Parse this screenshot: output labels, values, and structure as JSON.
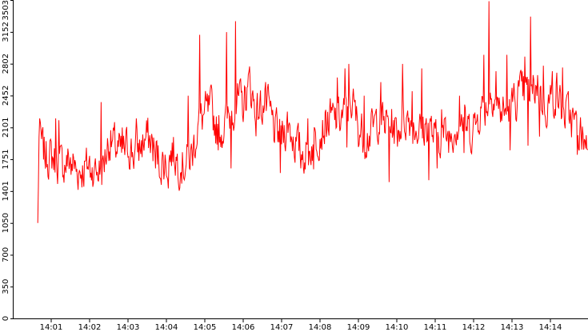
{
  "chart_data": {
    "type": "line",
    "title": "",
    "xlabel": "",
    "ylabel": "",
    "ylim": [
      0,
      3503
    ],
    "y_ticks": [
      0,
      350,
      700,
      1050,
      1401,
      1751,
      2101,
      2452,
      2802,
      3152,
      3503
    ],
    "x_ticks": [
      "14:01",
      "14:02",
      "14:03",
      "14:04",
      "14:05",
      "14:06",
      "14:07",
      "14:08",
      "14:09",
      "14:10",
      "14:11",
      "14:12",
      "14:13",
      "14:14"
    ],
    "x_range": [
      "14:00:39",
      "14:14:59"
    ],
    "grid": false,
    "legend": "none",
    "series": [
      {
        "color": "#ff0000",
        "sample_interval_s": 1,
        "anchors": [
          [
            "14:00:39",
            1050
          ],
          [
            "14:00:41",
            2000
          ],
          [
            "14:00:50",
            1800
          ],
          [
            "14:01:00",
            1780
          ],
          [
            "14:01:10",
            1720
          ],
          [
            "14:01:20",
            1680
          ],
          [
            "14:01:30",
            1760
          ],
          [
            "14:01:40",
            1620
          ],
          [
            "14:01:50",
            1640
          ],
          [
            "14:02:00",
            1700
          ],
          [
            "14:02:10",
            1620
          ],
          [
            "14:02:20",
            1650
          ],
          [
            "14:02:30",
            1950
          ],
          [
            "14:02:40",
            1900
          ],
          [
            "14:02:50",
            1800
          ],
          [
            "14:03:00",
            1900
          ],
          [
            "14:03:10",
            1800
          ],
          [
            "14:03:20",
            1900
          ],
          [
            "14:03:30",
            2000
          ],
          [
            "14:03:40",
            1880
          ],
          [
            "14:03:50",
            1720
          ],
          [
            "14:04:00",
            1700
          ],
          [
            "14:04:10",
            1850
          ],
          [
            "14:04:20",
            1700
          ],
          [
            "14:04:30",
            1700
          ],
          [
            "14:04:40",
            1800
          ],
          [
            "14:04:50",
            2150
          ],
          [
            "14:05:00",
            2250
          ],
          [
            "14:05:10",
            2300
          ],
          [
            "14:05:20",
            2050
          ],
          [
            "14:05:30",
            2100
          ],
          [
            "14:05:40",
            2250
          ],
          [
            "14:05:50",
            2400
          ],
          [
            "14:06:00",
            2350
          ],
          [
            "14:06:10",
            2600
          ],
          [
            "14:06:20",
            2250
          ],
          [
            "14:06:30",
            2350
          ],
          [
            "14:06:40",
            2300
          ],
          [
            "14:06:50",
            2050
          ],
          [
            "14:07:00",
            2000
          ],
          [
            "14:07:10",
            2150
          ],
          [
            "14:07:20",
            1950
          ],
          [
            "14:07:30",
            1850
          ],
          [
            "14:07:40",
            1800
          ],
          [
            "14:07:50",
            1950
          ],
          [
            "14:08:00",
            2050
          ],
          [
            "14:08:10",
            2150
          ],
          [
            "14:08:20",
            2200
          ],
          [
            "14:08:30",
            2200
          ],
          [
            "14:08:40",
            2250
          ],
          [
            "14:08:50",
            2400
          ],
          [
            "14:09:00",
            2100
          ],
          [
            "14:09:10",
            2000
          ],
          [
            "14:09:20",
            2050
          ],
          [
            "14:09:30",
            2200
          ],
          [
            "14:09:40",
            2150
          ],
          [
            "14:09:50",
            2150
          ],
          [
            "14:10:00",
            2050
          ],
          [
            "14:10:10",
            2200
          ],
          [
            "14:10:20",
            2200
          ],
          [
            "14:10:30",
            2100
          ],
          [
            "14:10:40",
            2050
          ],
          [
            "14:10:50",
            2150
          ],
          [
            "14:11:00",
            1950
          ],
          [
            "14:11:10",
            2050
          ],
          [
            "14:11:20",
            2000
          ],
          [
            "14:11:30",
            2100
          ],
          [
            "14:11:40",
            2200
          ],
          [
            "14:11:50",
            2100
          ],
          [
            "14:12:00",
            2050
          ],
          [
            "14:12:10",
            2300
          ],
          [
            "14:12:20",
            2350
          ],
          [
            "14:12:30",
            2500
          ],
          [
            "14:12:40",
            2300
          ],
          [
            "14:12:50",
            2250
          ],
          [
            "14:13:00",
            2350
          ],
          [
            "14:13:10",
            2450
          ],
          [
            "14:13:20",
            2500
          ],
          [
            "14:13:30",
            2450
          ],
          [
            "14:13:40",
            2600
          ],
          [
            "14:13:50",
            2300
          ],
          [
            "14:14:00",
            2400
          ],
          [
            "14:14:10",
            2500
          ],
          [
            "14:14:20",
            2250
          ],
          [
            "14:14:30",
            2250
          ],
          [
            "14:14:40",
            2100
          ],
          [
            "14:14:50",
            2000
          ],
          [
            "14:14:59",
            1900
          ]
        ],
        "spikes": [
          [
            "14:00:42",
            2200
          ],
          [
            "14:01:07",
            2200
          ],
          [
            "14:01:12",
            2180
          ],
          [
            "14:01:31",
            1580
          ],
          [
            "14:02:01",
            1550
          ],
          [
            "14:02:07",
            1620
          ],
          [
            "14:02:18",
            2380
          ],
          [
            "14:02:51",
            2100
          ],
          [
            "14:03:13",
            2200
          ],
          [
            "14:03:43",
            1650
          ],
          [
            "14:03:49",
            1560
          ],
          [
            "14:04:03",
            1430
          ],
          [
            "14:04:22",
            1600
          ],
          [
            "14:04:34",
            2450
          ],
          [
            "14:04:52",
            3120
          ],
          [
            "14:05:21",
            1850
          ],
          [
            "14:05:34",
            3150
          ],
          [
            "14:05:41",
            1650
          ],
          [
            "14:05:48",
            3270
          ],
          [
            "14:06:07",
            2550
          ],
          [
            "14:06:35",
            2600
          ],
          [
            "14:06:58",
            1600
          ],
          [
            "14:07:30",
            1650
          ],
          [
            "14:07:41",
            2200
          ],
          [
            "14:07:50",
            1640
          ],
          [
            "14:08:27",
            2650
          ],
          [
            "14:08:39",
            2750
          ],
          [
            "14:08:42",
            1880
          ],
          [
            "14:08:45",
            2800
          ],
          [
            "14:09:09",
            2450
          ],
          [
            "14:09:35",
            2600
          ],
          [
            "14:09:48",
            1500
          ],
          [
            "14:10:09",
            2800
          ],
          [
            "14:10:24",
            2500
          ],
          [
            "14:10:39",
            2750
          ],
          [
            "14:10:50",
            1520
          ],
          [
            "14:11:03",
            1650
          ],
          [
            "14:11:10",
            2300
          ],
          [
            "14:11:38",
            2450
          ],
          [
            "14:11:45",
            1820
          ],
          [
            "14:12:00",
            2250
          ],
          [
            "14:12:16",
            2900
          ],
          [
            "14:12:24",
            3490
          ],
          [
            "14:12:35",
            2720
          ],
          [
            "14:12:52",
            2900
          ],
          [
            "14:12:57",
            1850
          ],
          [
            "14:13:10",
            2620
          ],
          [
            "14:13:20",
            2880
          ],
          [
            "14:13:25",
            1900
          ],
          [
            "14:13:29",
            3320
          ],
          [
            "14:13:43",
            2000
          ],
          [
            "14:13:49",
            2780
          ],
          [
            "14:14:03",
            2720
          ],
          [
            "14:14:19",
            2760
          ],
          [
            "14:14:42",
            1800
          ],
          [
            "14:14:55",
            1870
          ]
        ]
      }
    ]
  }
}
